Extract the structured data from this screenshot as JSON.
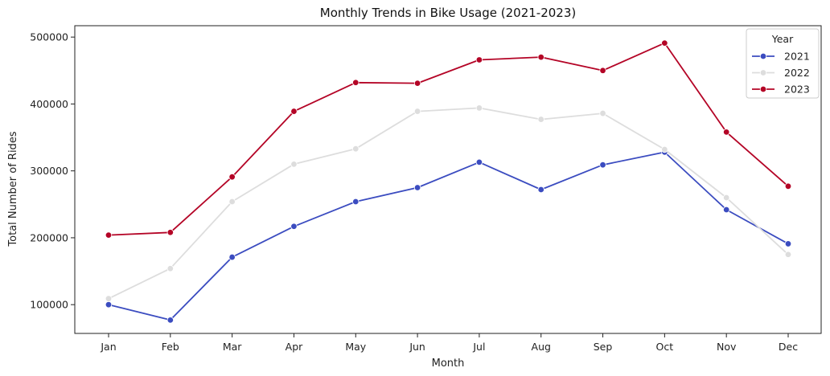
{
  "chart_data": {
    "type": "line",
    "title": "Monthly Trends in Bike Usage (2021-2023)",
    "xlabel": "Month",
    "ylabel": "Total Number of Rides",
    "categories": [
      "Jan",
      "Feb",
      "Mar",
      "Apr",
      "May",
      "Jun",
      "Jul",
      "Aug",
      "Sep",
      "Oct",
      "Nov",
      "Dec"
    ],
    "ylim": [
      57000,
      517000
    ],
    "yticks": [
      100000,
      200000,
      300000,
      400000,
      500000
    ],
    "ytick_labels": [
      "100000",
      "200000",
      "300000",
      "400000",
      "500000"
    ],
    "grid": false,
    "legend": {
      "title": "Year",
      "placement": "top-right"
    },
    "series": [
      {
        "name": "2021",
        "color": "#3b4cc0",
        "values": [
          100000,
          77000,
          171000,
          217000,
          254000,
          275000,
          313000,
          272000,
          309000,
          328000,
          242000,
          191000
        ]
      },
      {
        "name": "2022",
        "color": "#dddddd",
        "values": [
          109000,
          154000,
          254000,
          310000,
          333000,
          389000,
          394000,
          377000,
          386000,
          332000,
          260000,
          175000
        ]
      },
      {
        "name": "2023",
        "color": "#b40426",
        "values": [
          204000,
          208000,
          291000,
          389000,
          432000,
          431000,
          466000,
          470000,
          450000,
          491000,
          358000,
          277000
        ]
      }
    ]
  }
}
